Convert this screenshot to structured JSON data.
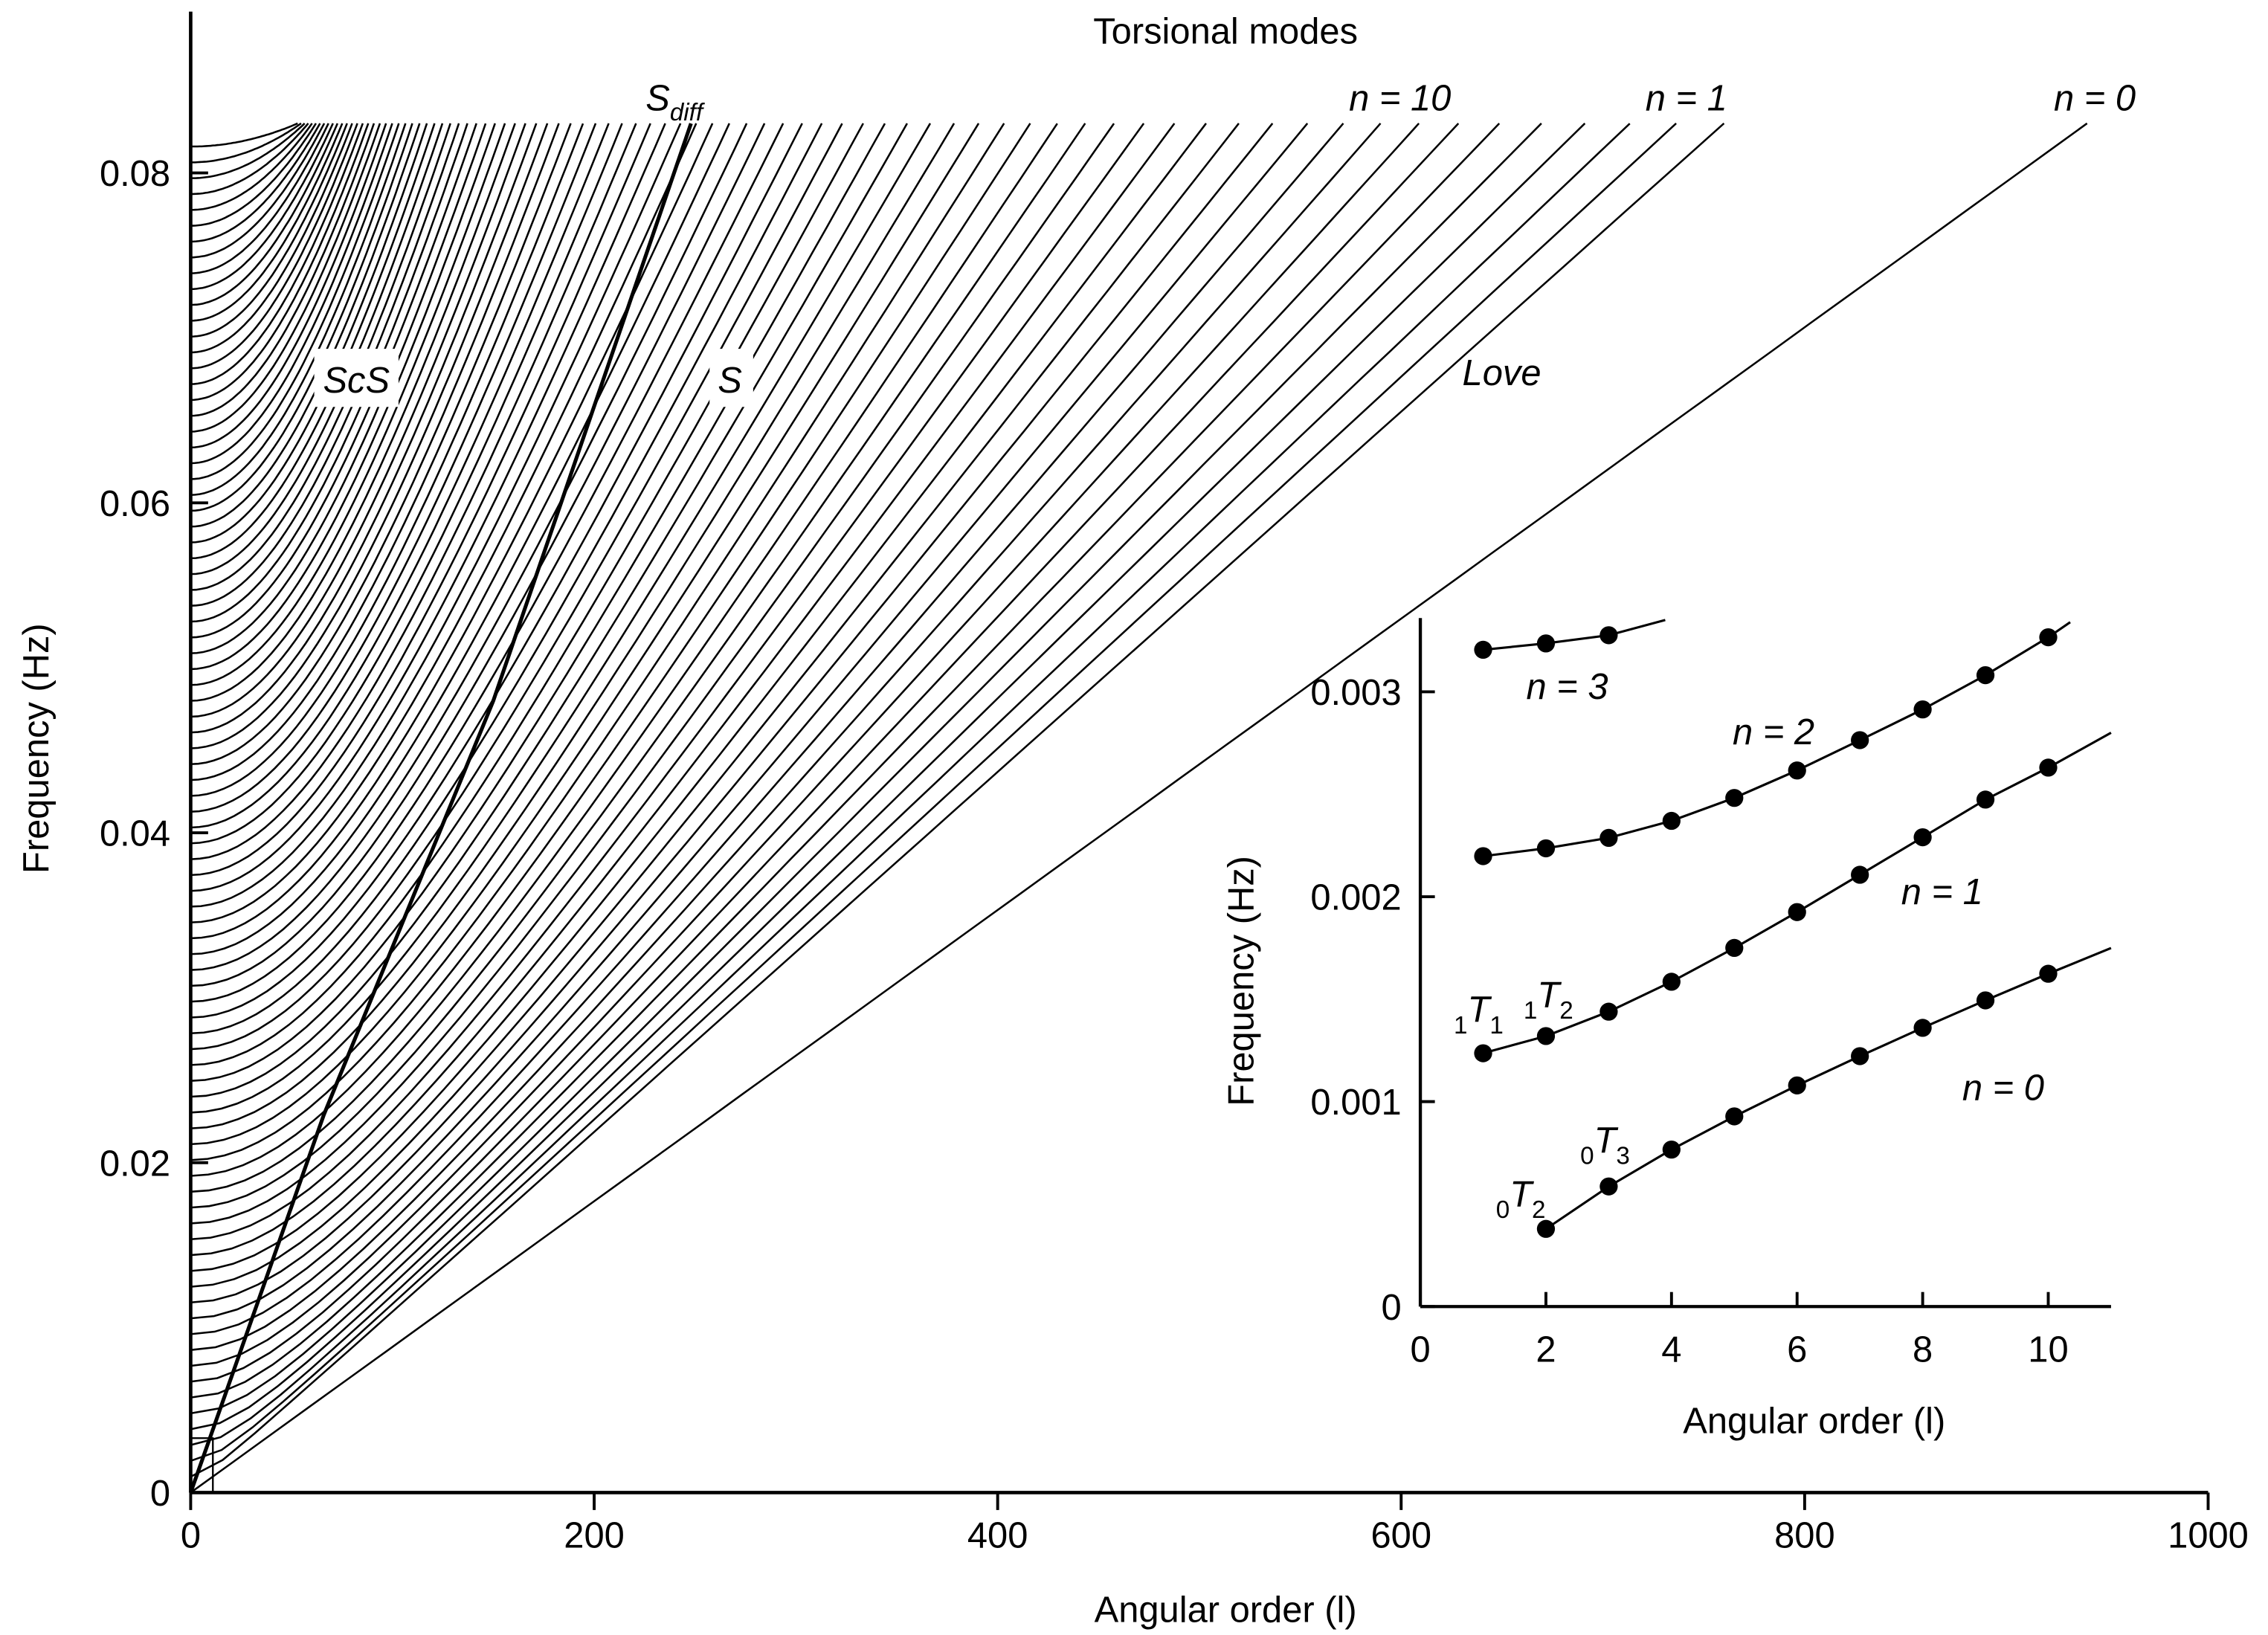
{
  "chart_data": [
    {
      "type": "line",
      "title": "Torsional modes",
      "xlabel": "Angular order (l)",
      "ylabel": "Frequency (Hz)",
      "xlim": [
        0,
        1000
      ],
      "ylim": [
        0,
        0.083
      ],
      "xticks": [
        "0",
        "200",
        "400",
        "600",
        "800",
        "1000"
      ],
      "yticks": [
        "0",
        "0.02",
        "0.04",
        "0.06",
        "0.08"
      ],
      "xtick_values": [
        0,
        200,
        400,
        600,
        800,
        1000
      ],
      "ytick_values": [
        0,
        0.02,
        0.04,
        0.06,
        0.08
      ],
      "branches": {
        "count": 86,
        "intercept_spacing_hz": 0.00096,
        "top_frequency_hz": 0.083,
        "n0_l_at_top": 940,
        "n1_l_at_top": 760,
        "l_at_top_decay_per_n": 0.0317
      },
      "sdiff_curve": [
        [
          0,
          0
        ],
        [
          66,
          0.0229
        ],
        [
          150,
          0.048
        ],
        [
          248,
          0.083
        ]
      ],
      "inset_box": {
        "l": [
          0,
          11
        ],
        "f": [
          0,
          0.0033
        ]
      },
      "annotations": {
        "sdiff": {
          "main": "S",
          "sub": "diff"
        },
        "n10": "n = 10",
        "n1": "n = 1",
        "n0": "n = 0",
        "scs": "ScS",
        "s": "S",
        "love": "Love"
      }
    },
    {
      "type": "line",
      "title": "",
      "xlabel": "Angular order (l)",
      "ylabel": "Frequency (Hz)",
      "xlim": [
        0,
        11
      ],
      "ylim": [
        0,
        0.00336
      ],
      "xticks": [
        "0",
        "2",
        "4",
        "6",
        "8",
        "10"
      ],
      "yticks": [
        "0",
        "0.001",
        "0.002",
        "0.003"
      ],
      "xtick_values": [
        0,
        2,
        4,
        6,
        8,
        10
      ],
      "ytick_values": [
        0,
        0.001,
        0.002,
        0.003
      ],
      "series": [
        {
          "name": "n = 0",
          "l": [
            2,
            3,
            4,
            5,
            6,
            7,
            8,
            9,
            10
          ],
          "f": [
            0.000379,
            0.000586,
            0.000766,
            0.000928,
            0.001079,
            0.001222,
            0.00136,
            0.001494,
            0.001624
          ],
          "line_end": [
            11,
            0.00175
          ]
        },
        {
          "name": "n = 1",
          "l": [
            1,
            2,
            3,
            4,
            5,
            6,
            7,
            8,
            9,
            10
          ],
          "f": [
            0.001236,
            0.00132,
            0.001439,
            0.001585,
            0.00175,
            0.001925,
            0.002107,
            0.00229,
            0.002474,
            0.00263
          ],
          "line_end": [
            11,
            0.0028
          ]
        },
        {
          "name": "n = 2",
          "l": [
            1,
            2,
            3,
            4,
            5,
            6,
            7,
            8,
            9,
            10
          ],
          "f": [
            0.002198,
            0.002236,
            0.002287,
            0.00237,
            0.002482,
            0.002616,
            0.002764,
            0.002914,
            0.003081,
            0.003266
          ],
          "line_end": [
            10.35,
            0.00334
          ]
        },
        {
          "name": "n = 3",
          "l": [
            1,
            2,
            3
          ],
          "f": [
            0.003205,
            0.003236,
            0.003276
          ],
          "line_end": [
            3.9,
            0.00335
          ]
        }
      ],
      "mode_labels": {
        "t11": {
          "pre": "1",
          "main": "T",
          "sub": "1"
        },
        "t12": {
          "pre": "1",
          "main": "T",
          "sub": "2"
        },
        "t03": {
          "pre": "0",
          "main": "T",
          "sub": "3"
        },
        "t02": {
          "pre": "0",
          "main": "T",
          "sub": "2"
        }
      }
    }
  ]
}
